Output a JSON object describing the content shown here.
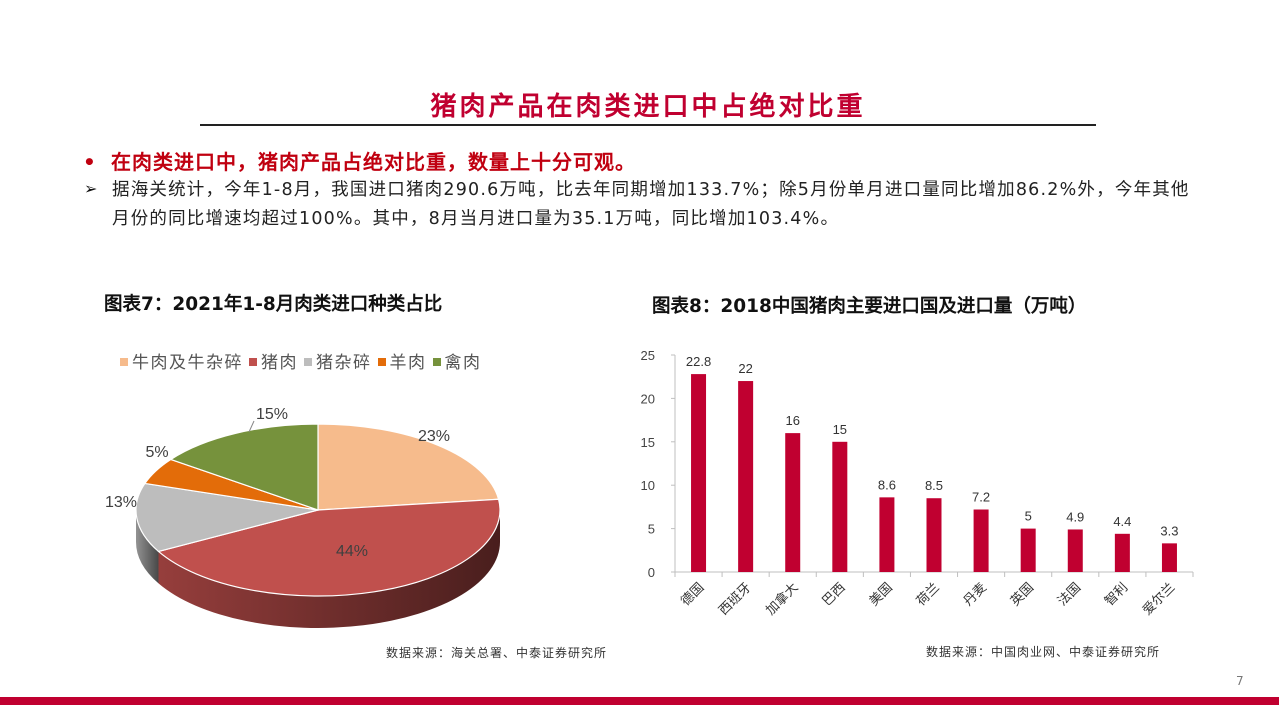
{
  "slide": {
    "title": "猪肉产品在肉类进口中占绝对比重",
    "bullet": "在肉类进口中，猪肉产品占绝对比重，数量上十分可观。",
    "bullet_marker": "•",
    "arrow_marker": "➢",
    "body": "据海关统计，今年1-8月，我国进口猪肉290.6万吨，比去年同期增加133.7%；除5月份单月进口量同比增加86.2%外，今年其他月份的同比增速均超过100%。其中，8月当月进口量为35.1万吨，同比增加103.4%。",
    "page_number": "7",
    "accent_color": "#c00030"
  },
  "chart_data": [
    {
      "type": "pie",
      "title": "图表7：2021年1-8月肉类进口种类占比",
      "categories": [
        "牛肉及牛杂碎",
        "猪肉",
        "猪杂碎",
        "羊肉",
        "禽肉"
      ],
      "values": [
        23,
        44,
        13,
        5,
        15
      ],
      "labels": [
        "23%",
        "44%",
        "13%",
        "5%",
        "15%"
      ],
      "colors": [
        "#f6bb8c",
        "#c0504d",
        "#bdbdbd",
        "#e36c09",
        "#76923c"
      ],
      "legend_position": "top",
      "style": "3d",
      "source": "数据来源：海关总署、中泰证券研究所"
    },
    {
      "type": "bar",
      "title": "图表8：2018中国猪肉主要进口国及进口量（万吨）",
      "categories": [
        "德国",
        "西班牙",
        "加拿大",
        "巴西",
        "美国",
        "荷兰",
        "丹麦",
        "英国",
        "法国",
        "智利",
        "爱尔兰"
      ],
      "values": [
        22.8,
        22,
        16,
        15,
        8.6,
        8.5,
        7.2,
        5,
        4.9,
        4.4,
        3.3
      ],
      "value_labels": [
        "22.8",
        "22",
        "16",
        "15",
        "8.6",
        "8.5",
        "7.2",
        "5",
        "4.9",
        "4.4",
        "3.3"
      ],
      "yticks": [
        "0",
        "5",
        "10",
        "15",
        "20",
        "25"
      ],
      "ylim": [
        0,
        25
      ],
      "xlabel": "",
      "ylabel": "",
      "grid": false,
      "bar_color": "#c00030",
      "source": "数据来源：中国肉业网、中泰证券研究所"
    }
  ]
}
